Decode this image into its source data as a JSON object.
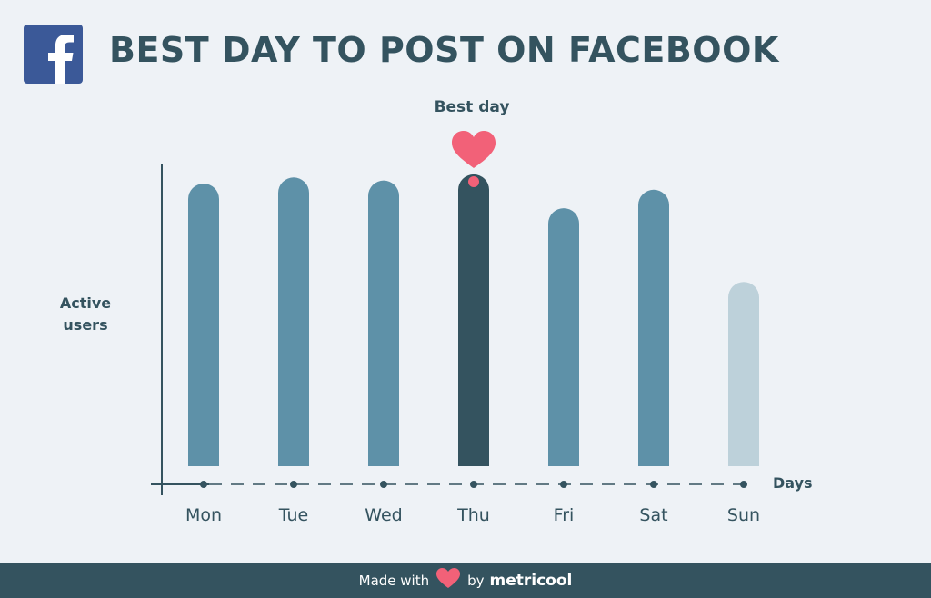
{
  "header": {
    "title": "BEST DAY TO POST ON FACEBOOK",
    "logo_icon": "facebook-logo-icon"
  },
  "annotation": {
    "label": "Best day",
    "icon": "heart-icon"
  },
  "colors": {
    "bar": "#5e91a8",
    "highlight": "#34535f",
    "low": "#bdd1da",
    "heart": "#f26178",
    "text": "#34535f"
  },
  "chart_data": {
    "type": "bar",
    "categories": [
      "Mon",
      "Tue",
      "Wed",
      "Thu",
      "Fri",
      "Sat",
      "Sun"
    ],
    "values": [
      92,
      94,
      93,
      95,
      84,
      90,
      60
    ],
    "highlight": "Thu",
    "xlabel": "Days",
    "ylabel": "Active users",
    "ylim": [
      0,
      100
    ],
    "grid": false,
    "legend": "none"
  },
  "footer": {
    "made_with": "Made with",
    "by": "by",
    "brand": "metricool"
  }
}
